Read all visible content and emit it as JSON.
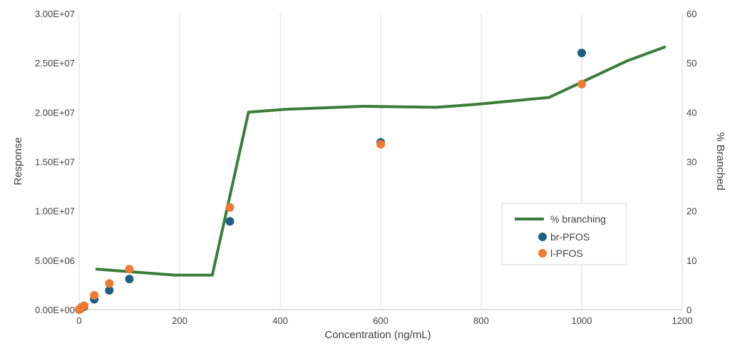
{
  "chart_data": {
    "type": "scatter",
    "x_axis": {
      "label": "Concentration (ng/mL)",
      "range": [
        0,
        1200
      ],
      "ticks": [
        0,
        200,
        400,
        600,
        800,
        1000,
        1200
      ],
      "tick_labels": [
        "0",
        "200",
        "400",
        "600",
        "800",
        "1000",
        "1200"
      ]
    },
    "y_axis_left": {
      "label": "Response",
      "range": [
        0,
        30000000
      ],
      "ticks": [
        0,
        5000000,
        10000000,
        15000000,
        20000000,
        25000000,
        30000000
      ],
      "tick_labels": [
        "0.00E+00",
        "5.00E+06",
        "1.00E+07",
        "1.50E+07",
        "2.00E+07",
        "2.50E+07",
        "3.00E+07"
      ]
    },
    "y_axis_right": {
      "label": "% Branched",
      "range": [
        0,
        60
      ],
      "ticks": [
        0,
        10,
        20,
        30,
        40,
        50,
        60
      ],
      "tick_labels": [
        "0",
        "10",
        "20",
        "30",
        "40",
        "50",
        "60"
      ]
    },
    "grid": "vertical",
    "legend_position": "lower-right",
    "series": [
      {
        "name": "% branching",
        "kind": "line",
        "axis": "right",
        "color": "#3a7d3a",
        "x": [
          35,
          190,
          265,
          337,
          410,
          565,
          710,
          790,
          935,
          1090,
          1165
        ],
        "y": [
          8.2,
          7.0,
          7.0,
          40.0,
          40.6,
          41.2,
          41.0,
          41.6,
          43.0,
          50.4,
          53.2
        ]
      },
      {
        "name": "br-PFOS",
        "kind": "scatter",
        "axis": "left",
        "color": "#1f5f85",
        "x": [
          0,
          1,
          3,
          5,
          10,
          30,
          60,
          100,
          300,
          600,
          1000
        ],
        "y": [
          0,
          50000,
          100000,
          180000,
          300000,
          1050000,
          1950000,
          3100000,
          8950000,
          16950000,
          26000000
        ]
      },
      {
        "name": "l-PFOS",
        "kind": "scatter",
        "axis": "left",
        "color": "#ee7a33",
        "x": [
          0,
          1,
          3,
          5,
          10,
          30,
          60,
          100,
          300,
          600,
          1000
        ],
        "y": [
          0,
          60000,
          130000,
          250000,
          400000,
          1450000,
          2650000,
          4100000,
          10350000,
          16750000,
          22850000
        ]
      }
    ]
  }
}
